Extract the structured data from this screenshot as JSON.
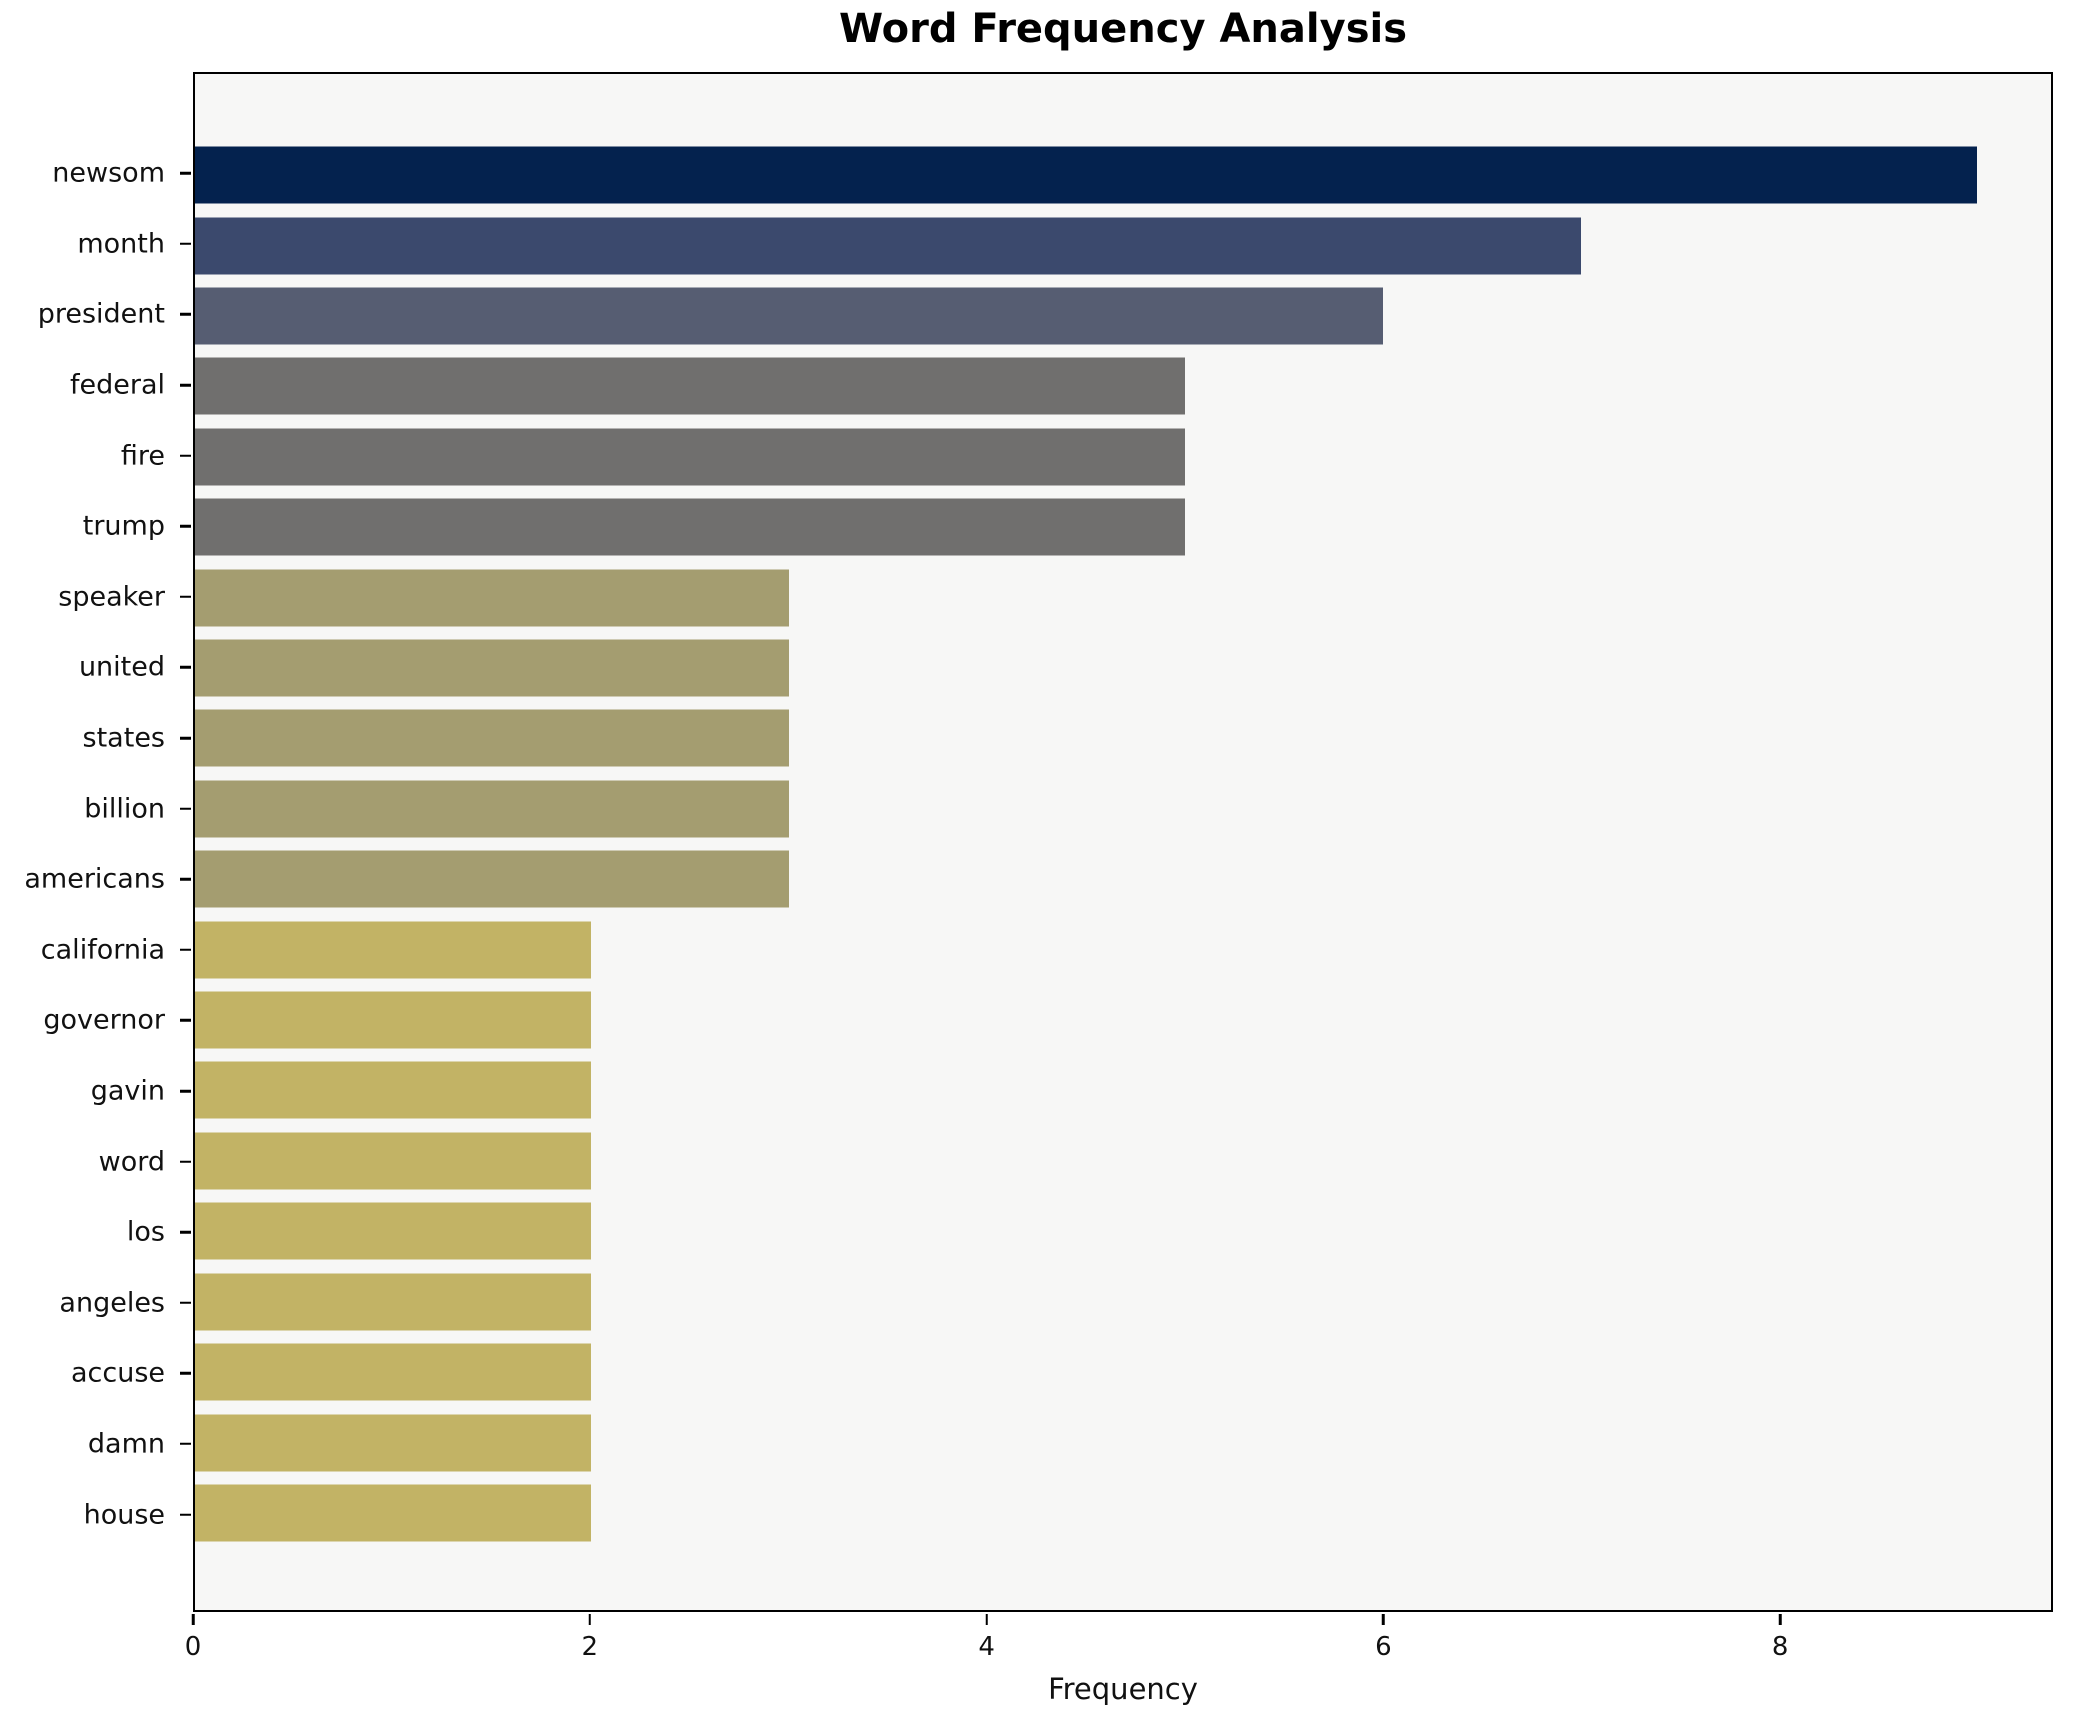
{
  "chart_data": {
    "type": "bar",
    "orientation": "horizontal",
    "title": "Word Frequency Analysis",
    "xlabel": "Frequency",
    "ylabel": "",
    "categories": [
      "newsom",
      "month",
      "president",
      "federal",
      "fire",
      "trump",
      "speaker",
      "united",
      "states",
      "billion",
      "americans",
      "california",
      "governor",
      "gavin",
      "word",
      "los",
      "angeles",
      "accuse",
      "damn",
      "house"
    ],
    "values": [
      9,
      7,
      6,
      5,
      5,
      5,
      3,
      3,
      3,
      3,
      3,
      2,
      2,
      2,
      2,
      2,
      2,
      2,
      2,
      2
    ],
    "bar_colors": [
      "#04224e",
      "#3b496d",
      "#565d72",
      "#706f6e",
      "#706f6e",
      "#706f6e",
      "#a49d70",
      "#a49d70",
      "#a49d70",
      "#a49d70",
      "#a49d70",
      "#c2b365",
      "#c2b365",
      "#c2b365",
      "#c2b365",
      "#c2b365",
      "#c2b365",
      "#c2b365",
      "#c2b365",
      "#c2b365"
    ],
    "xlim": [
      0,
      9.375
    ],
    "xticks": [
      0,
      2,
      4,
      6,
      8
    ],
    "grid": false,
    "legend": false,
    "plot_background": "#f7f7f6",
    "figure_background": "#ffffff",
    "spine_color": "#000000"
  }
}
